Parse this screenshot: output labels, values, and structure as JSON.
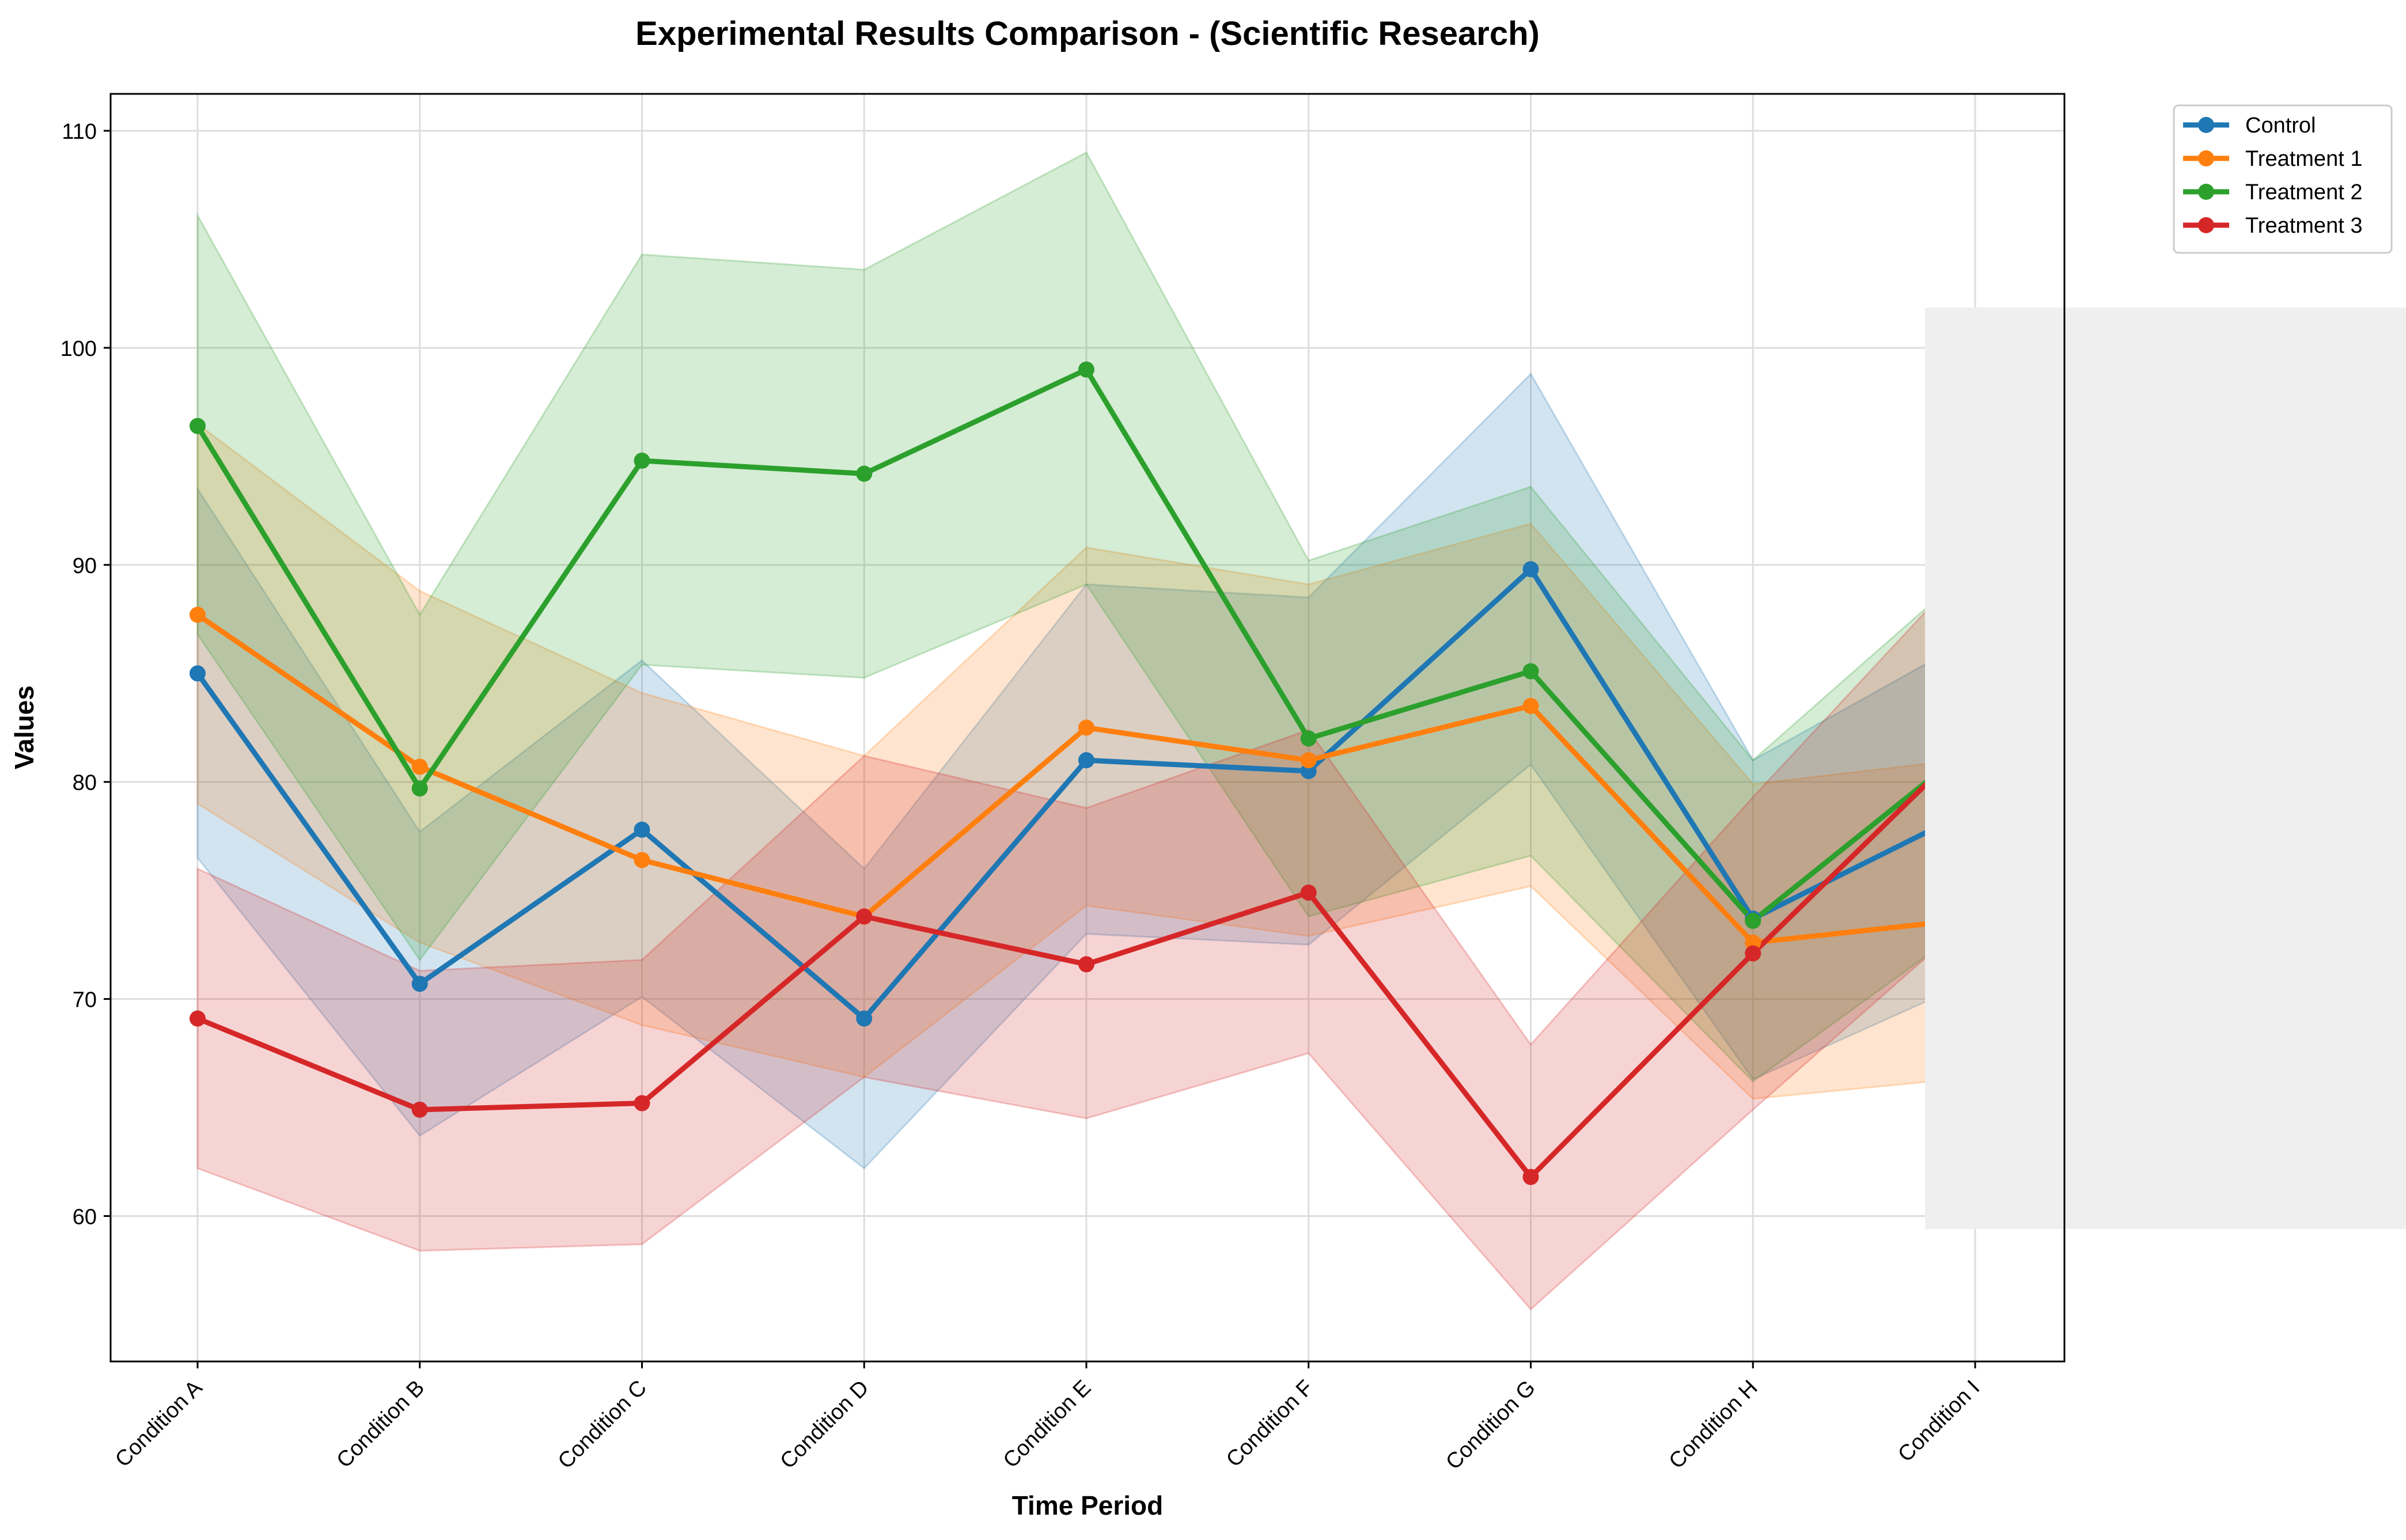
{
  "chart_data": {
    "type": "line",
    "title": "Experimental Results Comparison - (Scientific Research)",
    "xlabel": "Time Period",
    "ylabel": "Values",
    "categories": [
      "Condition A",
      "Condition B",
      "Condition C",
      "Condition D",
      "Condition E",
      "Condition F",
      "Condition G",
      "Condition H",
      "Condition I"
    ],
    "ylim": [
      53.3,
      111.7
    ],
    "yticks": [
      60,
      70,
      80,
      90,
      100,
      110
    ],
    "grid": true,
    "legend_position": "top-right, outside plot",
    "series": [
      {
        "name": "Control",
        "color": "#1f77b4",
        "values": [
          85.0,
          70.7,
          77.8,
          69.1,
          81.0,
          80.5,
          89.8,
          73.7,
          78.8
        ],
        "lower": [
          76.5,
          63.7,
          70.1,
          62.2,
          73.0,
          72.5,
          80.8,
          66.3,
          70.9
        ],
        "upper": [
          93.5,
          77.7,
          85.6,
          76.0,
          89.1,
          88.5,
          98.8,
          81.0,
          86.7
        ]
      },
      {
        "name": "Treatment 1",
        "color": "#ff7f0e",
        "values": [
          87.7,
          80.7,
          76.4,
          73.8,
          82.5,
          81.0,
          83.5,
          72.6,
          73.7
        ],
        "lower": [
          79.0,
          72.6,
          68.8,
          66.4,
          74.3,
          72.9,
          75.2,
          65.4,
          66.4
        ],
        "upper": [
          96.5,
          88.8,
          84.1,
          81.2,
          90.8,
          89.1,
          91.9,
          79.9,
          81.1
        ]
      },
      {
        "name": "Treatment 2",
        "color": "#2ca02c",
        "values": [
          96.4,
          79.7,
          94.8,
          94.2,
          99.0,
          82.0,
          85.1,
          73.6,
          81.8
        ],
        "lower": [
          86.8,
          71.8,
          85.4,
          84.8,
          89.1,
          73.8,
          76.6,
          66.2,
          73.6
        ],
        "upper": [
          106.1,
          87.7,
          104.3,
          103.6,
          109.0,
          90.2,
          93.6,
          81.0,
          90.0
        ]
      },
      {
        "name": "Treatment 3",
        "color": "#d62728",
        "values": [
          69.1,
          64.9,
          65.2,
          73.8,
          71.6,
          74.9,
          61.8,
          72.1,
          82.1
        ],
        "lower": [
          62.2,
          58.4,
          58.7,
          66.4,
          64.5,
          67.5,
          55.7,
          64.9,
          73.9
        ],
        "upper": [
          76.0,
          71.3,
          71.8,
          81.2,
          78.8,
          82.4,
          67.9,
          79.3,
          90.3
        ]
      }
    ]
  }
}
